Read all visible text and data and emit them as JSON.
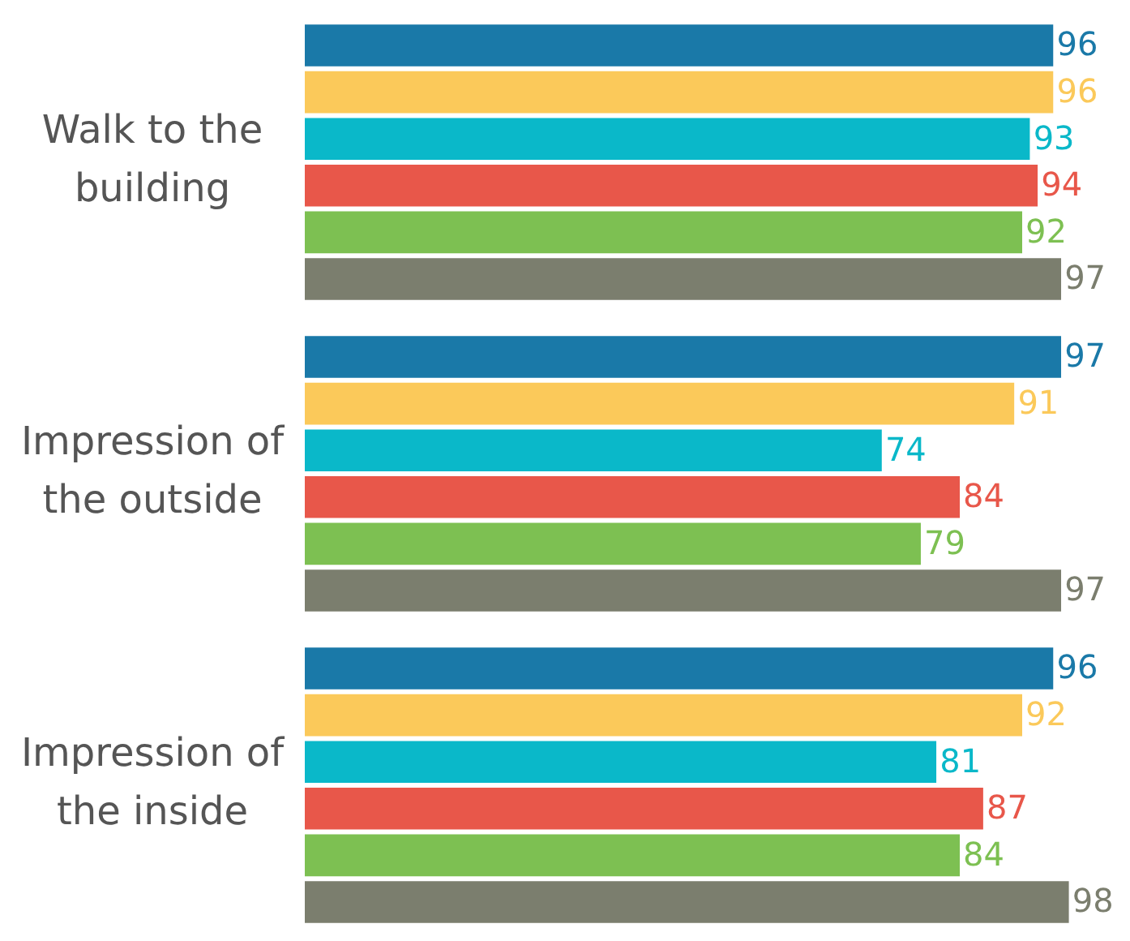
{
  "chart_data": {
    "type": "bar",
    "orientation": "horizontal",
    "categories": [
      "Walk to the building",
      "Impression of the outside",
      "Impression of the inside"
    ],
    "series": [
      {
        "color": "#1a79a8",
        "values": [
          96,
          97,
          96
        ]
      },
      {
        "color": "#fbc95a",
        "values": [
          96,
          91,
          92
        ]
      },
      {
        "color": "#0ab8c9",
        "values": [
          93,
          74,
          81
        ]
      },
      {
        "color": "#e8574a",
        "values": [
          94,
          84,
          87
        ]
      },
      {
        "color": "#7dc052",
        "values": [
          92,
          79,
          84
        ]
      },
      {
        "color": "#7b7e6e",
        "values": [
          97,
          97,
          98
        ]
      }
    ],
    "data_labels": true,
    "tick_labels": "y"
  }
}
